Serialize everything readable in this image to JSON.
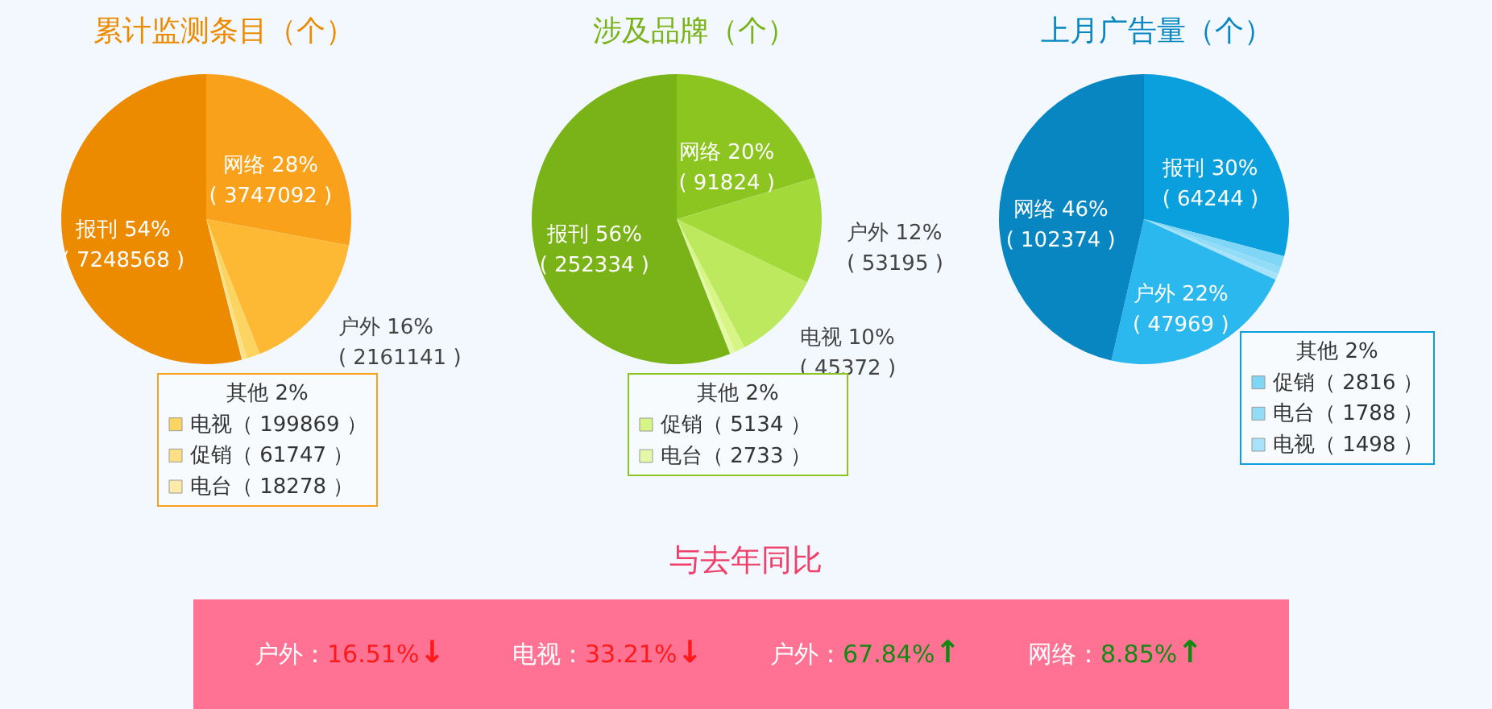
{
  "chart_data": [
    {
      "type": "pie",
      "title": "累计监测条目（个）",
      "categories": [
        "网络",
        "户外",
        "电视",
        "促销",
        "电台",
        "报刊"
      ],
      "values": [
        3747092,
        2161141,
        199869,
        61747,
        18278,
        7248568
      ],
      "value_labels": [
        "28%\n( 3747092 )",
        "16%\n( 2161141 )",
        "（ 199869 ）",
        "（ 61747 ）",
        "（ 18278 ）",
        "54%\n( 7248568 )"
      ],
      "colors": [
        "#f9a11b",
        "#fdb933",
        "#fcd461",
        "#fde084",
        "#feeaa8",
        "#ec8a00"
      ],
      "annotations": [
        "其他 2%"
      ],
      "legend": "bottom"
    },
    {
      "type": "pie",
      "title": "涉及品牌（个）",
      "categories": [
        "网络",
        "户外",
        "电视",
        "促销",
        "电台",
        "报刊"
      ],
      "values": [
        91824,
        53195,
        45372,
        5134,
        2733,
        252334
      ],
      "value_labels": [
        "20%\n( 91824 )",
        "12%\n( 53195 )",
        "10%\n( 45372 )",
        "（ 5134 ）",
        "（ 2733 ）",
        "56%\n( 252334 )"
      ],
      "colors": [
        "#8cc51f",
        "#a3da3a",
        "#bce95e",
        "#d6f584",
        "#e4f9a8",
        "#7ab317"
      ],
      "annotations": [
        "其他 2%"
      ],
      "legend": "bottom"
    },
    {
      "type": "pie",
      "title": "上月广告量（个）",
      "categories": [
        "报刊",
        "促销",
        "电台",
        "电视",
        "户外",
        "网络"
      ],
      "values": [
        64244,
        2816,
        1788,
        1498,
        47969,
        102374
      ],
      "value_labels": [
        "30%\n( 64244 )",
        "（ 2816 ）",
        "（ 1788 ）",
        "（ 1498 ）",
        "22%\n( 47969 )",
        "46%\n( 102374 )"
      ],
      "colors": [
        "#0aa0de",
        "#7fd6f7",
        "#92dcf8",
        "#a6e3fa",
        "#2ab8ee",
        "#0786c2"
      ],
      "annotations": [
        "其他 2%"
      ],
      "legend": "bottom right"
    },
    {
      "type": "other",
      "title": "与去年同比",
      "annotations": [
        "户外：16.51%↓",
        "电视：33.21%↓",
        "户外：67.84%↑",
        "网络：8.85%↑"
      ],
      "colors": [
        "#ff1a1a",
        "#ff1a1a",
        "#128a12",
        "#128a12"
      ]
    }
  ]
}
